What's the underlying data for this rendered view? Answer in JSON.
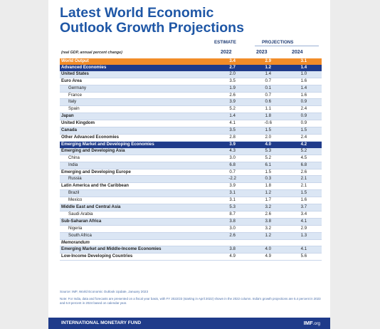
{
  "title_line1": "Latest World Economic",
  "title_line2": "Outlook Growth Projections",
  "units_note": "(real GDP, annual percent change)",
  "header": {
    "estimate": "ESTIMATE",
    "projections": "PROJECTIONS",
    "years": [
      "2022",
      "2023",
      "2024"
    ]
  },
  "rows": [
    {
      "name": "World Output",
      "v": [
        "3.4",
        "2.9",
        "3.1"
      ],
      "style": "world"
    },
    {
      "name": "Advanced Economies",
      "v": [
        "2.7",
        "1.2",
        "1.4"
      ],
      "style": "group"
    },
    {
      "name": "United States",
      "v": [
        "2.0",
        "1.4",
        "1.0"
      ],
      "style": "bold"
    },
    {
      "name": "Euro Area",
      "v": [
        "3.5",
        "0.7",
        "1.6"
      ],
      "style": "bold"
    },
    {
      "name": "Germany",
      "v": [
        "1.9",
        "0.1",
        "1.4"
      ],
      "style": "sub"
    },
    {
      "name": "France",
      "v": [
        "2.6",
        "0.7",
        "1.6"
      ],
      "style": "sub"
    },
    {
      "name": "Italy",
      "v": [
        "3.9",
        "0.6",
        "0.9"
      ],
      "style": "sub"
    },
    {
      "name": "Spain",
      "v": [
        "5.2",
        "1.1",
        "2.4"
      ],
      "style": "sub"
    },
    {
      "name": "Japan",
      "v": [
        "1.4",
        "1.8",
        "0.9"
      ],
      "style": "bold"
    },
    {
      "name": "United Kingdom",
      "v": [
        "4.1",
        "-0.6",
        "0.9"
      ],
      "style": "bold"
    },
    {
      "name": "Canada",
      "v": [
        "3.5",
        "1.5",
        "1.5"
      ],
      "style": "bold"
    },
    {
      "name": "Other Advanced Economies",
      "v": [
        "2.8",
        "2.0",
        "2.4"
      ],
      "style": "bold"
    },
    {
      "name": "Emerging Market and Developing Economies",
      "v": [
        "3.9",
        "4.0",
        "4.2"
      ],
      "style": "group"
    },
    {
      "name": "Emerging and Developing Asia",
      "v": [
        "4.3",
        "5.3",
        "5.2"
      ],
      "style": "bold"
    },
    {
      "name": "China",
      "v": [
        "3.0",
        "5.2",
        "4.5"
      ],
      "style": "sub"
    },
    {
      "name": "India",
      "v": [
        "6.8",
        "6.1",
        "6.8"
      ],
      "style": "sub"
    },
    {
      "name": "Emerging and Developing Europe",
      "v": [
        "0.7",
        "1.5",
        "2.6"
      ],
      "style": "bold"
    },
    {
      "name": "Russia",
      "v": [
        "-2.2",
        "0.3",
        "2.1"
      ],
      "style": "sub"
    },
    {
      "name": "Latin America and the Caribbean",
      "v": [
        "3.9",
        "1.8",
        "2.1"
      ],
      "style": "bold"
    },
    {
      "name": "Brazil",
      "v": [
        "3.1",
        "1.2",
        "1.5"
      ],
      "style": "sub"
    },
    {
      "name": "Mexico",
      "v": [
        "3.1",
        "1.7",
        "1.6"
      ],
      "style": "sub"
    },
    {
      "name": "Middle East and Central Asia",
      "v": [
        "5.3",
        "3.2",
        "3.7"
      ],
      "style": "bold"
    },
    {
      "name": "Saudi Arabia",
      "v": [
        "8.7",
        "2.6",
        "3.4"
      ],
      "style": "sub"
    },
    {
      "name": "Sub-Saharan Africa",
      "v": [
        "3.8",
        "3.8",
        "4.1"
      ],
      "style": "bold"
    },
    {
      "name": "Nigeria",
      "v": [
        "3.0",
        "3.2",
        "2.9"
      ],
      "style": "sub"
    },
    {
      "name": "South Africa",
      "v": [
        "2.6",
        "1.2",
        "1.3"
      ],
      "style": "sub"
    },
    {
      "name": "Memorandum",
      "v": [
        "",
        "",
        ""
      ],
      "style": "italic"
    },
    {
      "name": "Emerging Market and Middle-Income Economies",
      "v": [
        "3.8",
        "4.0",
        "4.1"
      ],
      "style": "bold"
    },
    {
      "name": "Low-Income Developing Countries",
      "v": [
        "4.9",
        "4.9",
        "5.6"
      ],
      "style": "bold"
    }
  ],
  "source": "Source: IMF, World Economic Outlook Update, January 2023",
  "note": "Note: For India, data and forecasts are presented on a fiscal year basis, with FY 2022/23 (starting in April 2022) shown in the 2022 column. India's growth projections are 5.4 percent in 2023 and 6.8 percent in 2024 based on calendar year.",
  "footer": {
    "org": "INTERNATIONAL MONETARY FUND",
    "url_main": "IMF",
    "url_tld": ".org"
  },
  "colors": {
    "title": "#1f57a6",
    "world_row": "#f28c28",
    "group_row": "#1f3b8a",
    "band": "#dbe6f4"
  }
}
